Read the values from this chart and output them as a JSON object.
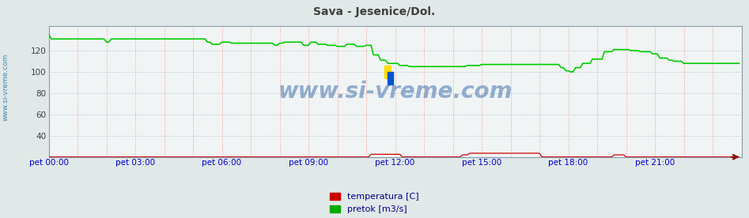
{
  "title": "Sava - Jesenice/Dol.",
  "title_color": "#404040",
  "bg_color": "#e0e8e8",
  "plot_bg_color": "#f0f4f4",
  "x_label_color": "#0000cc",
  "y_label_color": "#404040",
  "grid_h_color": "#aabbcc",
  "grid_v_color": "#ffaaaa",
  "x_ticks": [
    0,
    180,
    360,
    540,
    720,
    900,
    1080,
    1260
  ],
  "x_tick_labels": [
    "pet 00:00",
    "pet 03:00",
    "pet 06:00",
    "pet 09:00",
    "pet 12:00",
    "pet 15:00",
    "pet 18:00",
    "pet 21:00"
  ],
  "y_ticks": [
    40,
    60,
    80,
    100,
    120
  ],
  "ylim": [
    20,
    143
  ],
  "xlim": [
    0,
    1440
  ],
  "watermark": "www.si-vreme.com",
  "watermark_color": "#3366aa",
  "legend": [
    {
      "label": "temperatura [C]",
      "color": "#cc0000"
    },
    {
      "label": "pretok [m3/s]",
      "color": "#00aa00"
    }
  ],
  "sidebar_text": "www.si-vreme.com",
  "sidebar_color": "#4488aa"
}
